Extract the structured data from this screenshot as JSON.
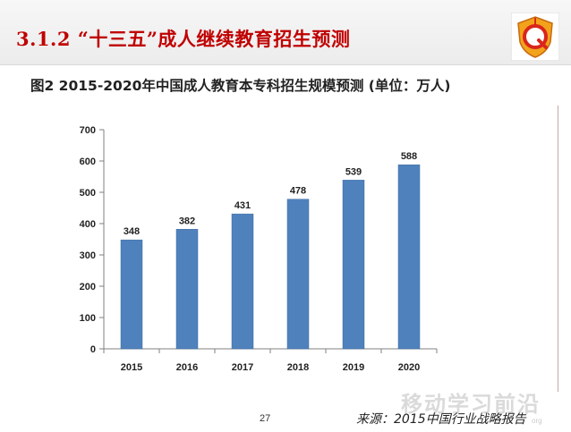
{
  "header": {
    "section_title": "3.1.2 “十三五”成人继续教育招生预测"
  },
  "chart_data": {
    "type": "bar",
    "title": "图2  2015-2020年中国成人教育本专科招生规模预测 (单位：万人)",
    "categories": [
      "2015",
      "2016",
      "2017",
      "2018",
      "2019",
      "2020"
    ],
    "values": [
      348,
      382,
      431,
      478,
      539,
      588
    ],
    "data_labels": [
      "348",
      "382",
      "431",
      "478",
      "539",
      "588"
    ],
    "ylim": [
      0,
      700
    ],
    "yticks": [
      0,
      100,
      200,
      300,
      400,
      500,
      600,
      700
    ],
    "grid": false,
    "legend": "none",
    "bar_color": "#4f81bd"
  },
  "footer": {
    "page_number": "27",
    "source": "来源：2015中国行业战略报告"
  },
  "watermark": {
    "text": "移动学习前沿",
    "sub": "org"
  },
  "colors": {
    "title_red": "#c00000",
    "bar_blue": "#4f81bd"
  },
  "icons": {
    "logo": "q-shield-logo-icon"
  }
}
